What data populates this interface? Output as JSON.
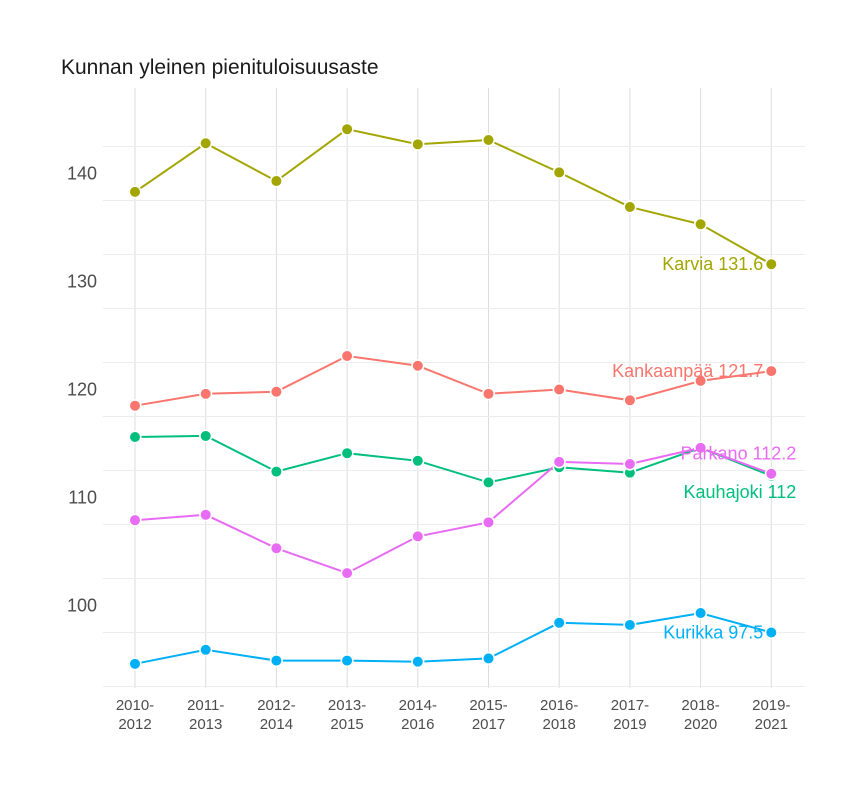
{
  "chart_data": {
    "type": "line",
    "title": "Kunnan yleinen pienituloisuusaste",
    "xlabel": "",
    "ylabel": "",
    "categories": [
      [
        "2010-",
        "2012"
      ],
      [
        "2011-",
        "2013"
      ],
      [
        "2012-",
        "2014"
      ],
      [
        "2013-",
        "2015"
      ],
      [
        "2014-",
        "2016"
      ],
      [
        "2015-",
        "2017"
      ],
      [
        "2016-",
        "2018"
      ],
      [
        "2017-",
        "2019"
      ],
      [
        "2018-",
        "2020"
      ],
      [
        "2019-",
        "2021"
      ]
    ],
    "y_ticks": [
      "100",
      "110",
      "120",
      "130",
      "140"
    ],
    "ylim": [
      92.5,
      147
    ],
    "grid": true,
    "legend": "direct labels at line ends",
    "series": [
      {
        "name": "Karvia",
        "end_label": "Karvia 131.6",
        "color": "#a3a500",
        "values": [
          138.3,
          142.8,
          139.3,
          144.1,
          142.7,
          143.1,
          140.1,
          136.9,
          135.3,
          131.6
        ]
      },
      {
        "name": "Kankaanpää",
        "end_label": "Kankaanpää 121.7",
        "color": "#f8766d",
        "values": [
          118.5,
          119.6,
          119.8,
          123.1,
          122.2,
          119.6,
          120.0,
          119.0,
          120.8,
          121.7
        ]
      },
      {
        "name": "Kauhajoki",
        "end_label": "Kauhajoki 112",
        "color": "#00bf7d",
        "values": [
          115.6,
          115.7,
          112.4,
          114.1,
          113.4,
          111.4,
          112.8,
          112.3,
          114.6,
          112.0
        ]
      },
      {
        "name": "Parkano",
        "end_label": "Parkano 112.2",
        "color": "#e76bf3",
        "values": [
          107.9,
          108.4,
          105.3,
          103.0,
          106.4,
          107.7,
          113.3,
          113.1,
          114.6,
          112.2
        ]
      },
      {
        "name": "Kurikka",
        "end_label": "Kurikka 97.5",
        "color": "#00b0f6",
        "values": [
          94.6,
          95.9,
          94.9,
          94.9,
          94.8,
          95.1,
          98.4,
          98.2,
          99.3,
          97.5
        ]
      }
    ]
  }
}
